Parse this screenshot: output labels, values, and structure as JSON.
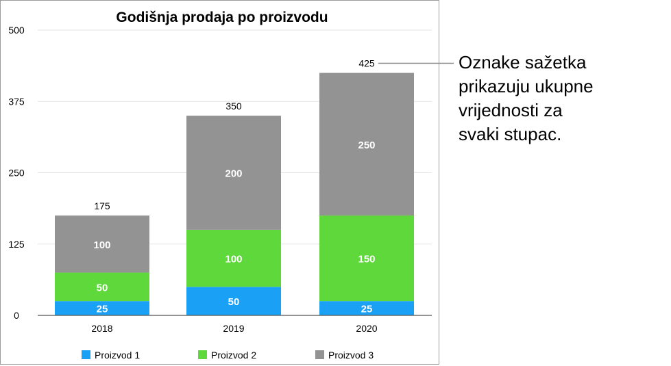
{
  "chart_data": {
    "type": "bar",
    "stacked": true,
    "title": "Godišnja prodaja po proizvodu",
    "xlabel": "",
    "ylabel": "",
    "categories": [
      "2018",
      "2019",
      "2020"
    ],
    "series": [
      {
        "name": "Proizvod 1",
        "color": "#1aa1f5",
        "values": [
          25,
          50,
          25
        ]
      },
      {
        "name": "Proizvod 2",
        "color": "#5fd83b",
        "values": [
          50,
          100,
          150
        ]
      },
      {
        "name": "Proizvod 3",
        "color": "#939393",
        "values": [
          100,
          200,
          250
        ]
      }
    ],
    "totals": [
      175,
      350,
      425
    ],
    "ylim": [
      0,
      500
    ],
    "yticks": [
      "0",
      "125",
      "250",
      "375",
      "500"
    ],
    "grid": true,
    "legend_position": "bottom"
  },
  "callout": {
    "lines": [
      "Oznake sažetka",
      "prikazuju ukupne",
      "vrijednosti za",
      "svaki stupac."
    ]
  }
}
